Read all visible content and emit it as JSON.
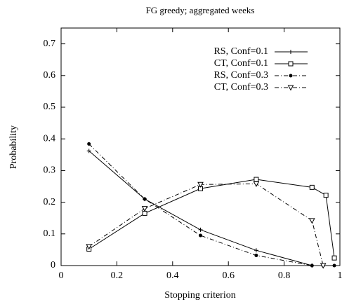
{
  "chart_data": {
    "type": "line",
    "title": "FG greedy; aggregated weeks",
    "x_label": "Stopping criterion",
    "y_label": "Probability",
    "xlim": [
      0,
      1
    ],
    "xticks": [
      0,
      0.2,
      0.4,
      0.6,
      0.8,
      1
    ],
    "ylim": [
      0,
      0.75
    ],
    "yticks": [
      0,
      0.1,
      0.2,
      0.3,
      0.4,
      0.5,
      0.6,
      0.7
    ],
    "legend": "top-right",
    "series": [
      {
        "name": "RS, Conf=0.1",
        "color": "#000000",
        "line_style": "solid",
        "marker": "plus",
        "x": [
          0.1,
          0.3,
          0.5,
          0.7,
          0.9
        ],
        "values": [
          0.362,
          0.21,
          0.113,
          0.048,
          0.0
        ]
      },
      {
        "name": "CT, Conf=0.1",
        "color": "#000000",
        "line_style": "solid",
        "marker": "square",
        "x": [
          0.1,
          0.3,
          0.5,
          0.7,
          0.9,
          0.95,
          0.98
        ],
        "values": [
          0.052,
          0.165,
          0.243,
          0.272,
          0.247,
          0.222,
          0.024
        ]
      },
      {
        "name": "RS, Conf=0.3",
        "color": "#000000",
        "line_style": "dash-dot",
        "marker": "circle",
        "x": [
          0.1,
          0.3,
          0.5,
          0.7,
          0.9,
          0.94,
          0.98
        ],
        "values": [
          0.384,
          0.21,
          0.095,
          0.032,
          0.0,
          0.0,
          0.0
        ]
      },
      {
        "name": "CT, Conf=0.3",
        "color": "#000000",
        "line_style": "dash-dot",
        "marker": "triangle-down",
        "x": [
          0.1,
          0.3,
          0.5,
          0.7,
          0.9,
          0.94
        ],
        "values": [
          0.06,
          0.18,
          0.256,
          0.258,
          0.142,
          0.0
        ]
      }
    ]
  }
}
